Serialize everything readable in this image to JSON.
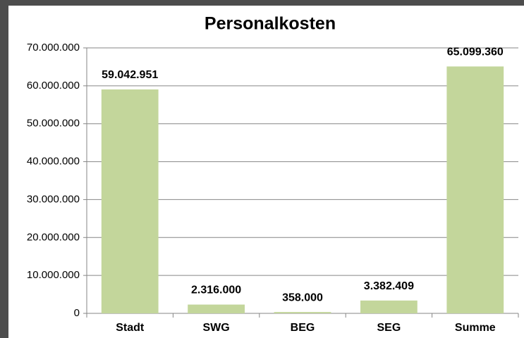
{
  "chart_data": {
    "type": "bar",
    "title": "Personalkosten",
    "categories": [
      "Stadt",
      "SWG",
      "BEG",
      "SEG",
      "Summe"
    ],
    "values": [
      59042951,
      2316000,
      358000,
      3382409,
      65099360
    ],
    "value_labels": [
      "59.042.951",
      "2.316.000",
      "358.000",
      "3.382.409",
      "65.099.360"
    ],
    "color": "#c3d69b",
    "ylim": [
      0,
      70000000
    ],
    "yticks": [
      0,
      {
        "value": 10000000,
        "label": "10.000.000"
      },
      {
        "value": 20000000,
        "label": "20.000.000"
      },
      {
        "value": 30000000,
        "label": "30.000.000"
      },
      {
        "value": 40000000,
        "label": "40.000.000"
      },
      {
        "value": 50000000,
        "label": "50.000.000"
      },
      {
        "value": 60000000,
        "label": "60.000.000"
      },
      {
        "value": 70000000,
        "label": "70.000.000"
      }
    ],
    "grid": true
  }
}
